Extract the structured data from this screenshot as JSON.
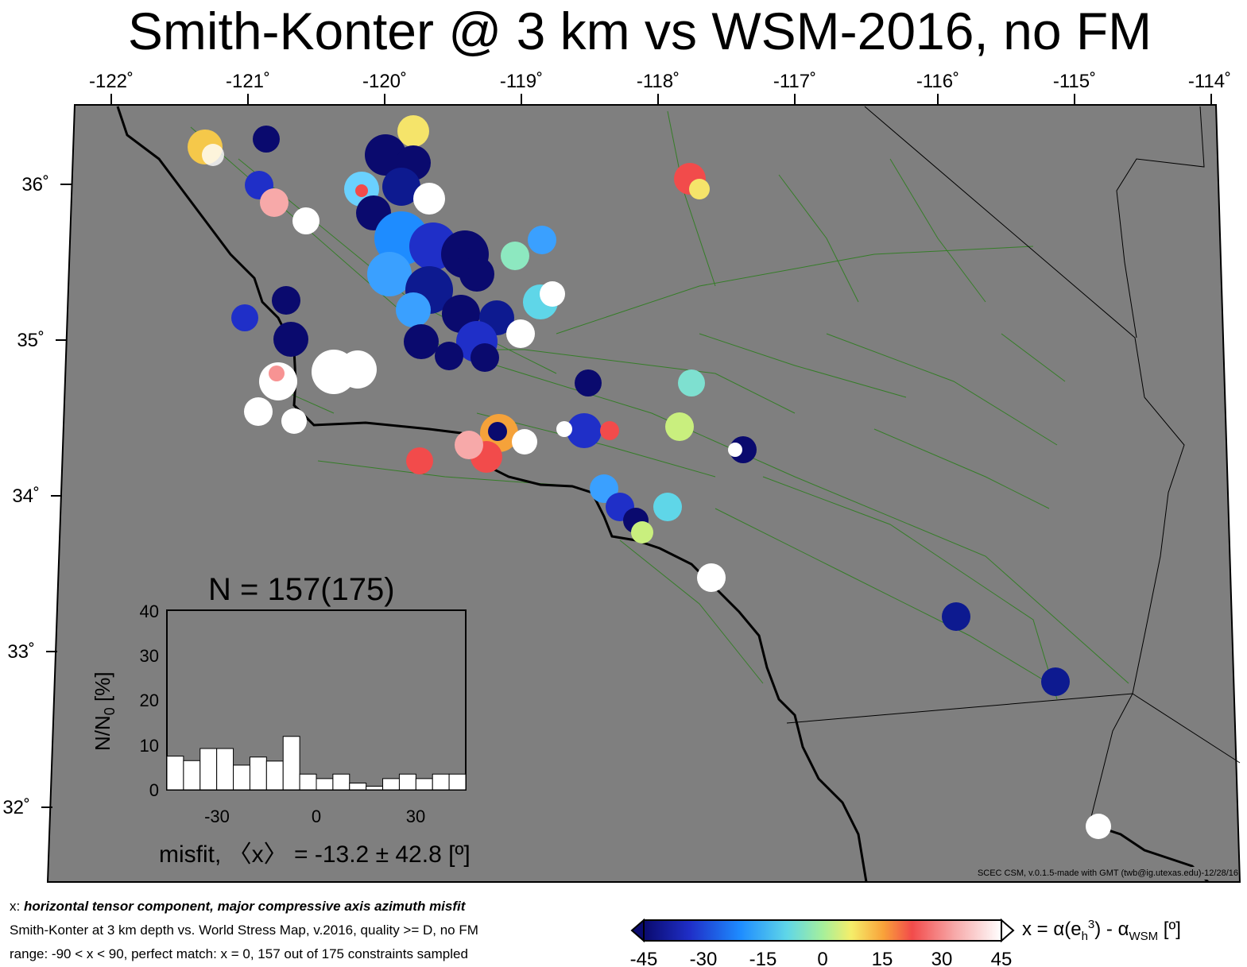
{
  "title": "Smith-Konter @ 3 km vs WSM-2016, no FM",
  "map": {
    "lon_ticks": [
      "-122˚",
      "-121˚",
      "-120˚",
      "-119˚",
      "-118˚",
      "-117˚",
      "-116˚",
      "-115˚",
      "-114˚"
    ],
    "lat_ticks": [
      "36˚",
      "35˚",
      "34˚",
      "33˚",
      "32˚"
    ],
    "colors": {
      "background": "#7f7f7f",
      "faults": "#2e7d1f",
      "coast": "#000000",
      "borders": "#000000"
    }
  },
  "histogram": {
    "title": "N = 157(175)",
    "ylabel": "N/N",
    "ylabel_sub": "0",
    "ylabel_unit": " [%]",
    "xlabel": "misfit, 〈x〉 = -13.2 ± 42.8 [º]",
    "x_ticks": [
      "-30",
      "0",
      "30"
    ],
    "y_ticks": [
      "0",
      "10",
      "20",
      "30",
      "40"
    ]
  },
  "chart_data": {
    "type": "bar",
    "title": "N = 157(175)",
    "xlabel": "misfit, 〈x〉 = -13.2 ± 42.8 [º]",
    "ylabel": "N/N0 [%]",
    "xlim": [
      -45,
      45
    ],
    "ylim": [
      0,
      40
    ],
    "bin_centers": [
      -42.5,
      -37.5,
      -32.5,
      -27.5,
      -22.5,
      -17.5,
      -12.5,
      -7.5,
      -2.5,
      2.5,
      7.5,
      12.5,
      17.5,
      22.5,
      27.5,
      32.5,
      37.5,
      42.5
    ],
    "values": [
      7.5,
      6.5,
      9.2,
      9.2,
      5.5,
      7.3,
      6.4,
      11.9,
      3.5,
      2.5,
      3.5,
      1.5,
      0.8,
      2.5,
      3.5,
      2.5,
      3.5,
      3.5
    ]
  },
  "footer": {
    "line1_prefix": "x: ",
    "line1_bold": "horizontal tensor component, major compressive axis azimuth misfit",
    "line2": "Smith-Konter at 3 km depth vs.  World Stress Map, v.2016, quality >= D, no FM",
    "line3": "range: -90 < x < 90, perfect match: x = 0, 157 out of 175 constraints sampled"
  },
  "credit": "SCEC CSM, v.0.1.5-made with GMT (twb@ig.utexas.edu)-12/28/16",
  "colorbar": {
    "ticks": [
      "-45",
      "-30",
      "-15",
      "0",
      "15",
      "30",
      "45"
    ],
    "label_main": "x = α(e",
    "label_sub1": "h",
    "label_sup": "3",
    "label_mid": ") - α",
    "label_sub2": "WSM",
    "label_end": " [º]"
  }
}
